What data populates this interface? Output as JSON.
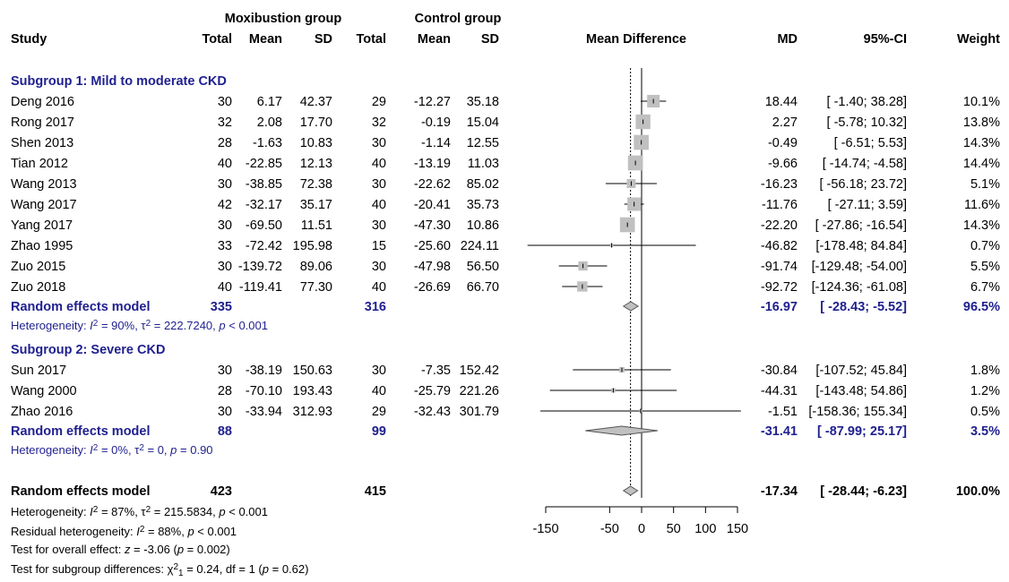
{
  "chart_data": {
    "type": "forest",
    "headers": {
      "group1": "Moxibustion group",
      "group2": "Control group",
      "study": "Study",
      "total1": "Total",
      "mean1": "Mean",
      "sd1": "SD",
      "total2": "Total",
      "mean2": "Mean",
      "sd2": "SD",
      "plot": "Mean Difference",
      "md": "MD",
      "ci": "95%-CI",
      "weight": "Weight"
    },
    "xlim": [
      -150,
      150
    ],
    "ticks": [
      "-150",
      "-50",
      "0",
      "50",
      "100",
      "150"
    ],
    "tick_values": [
      -150,
      -50,
      0,
      50,
      100,
      150
    ],
    "overall_md_line": -17.34,
    "subgroups": [
      {
        "title": "Subgroup 1: Mild to moderate CKD",
        "studies": [
          {
            "name": "Deng 2016",
            "n1": "30",
            "m1": "6.17",
            "s1": "42.37",
            "n2": "29",
            "m2": "-12.27",
            "s2": "35.18",
            "md_text": "18.44",
            "ci_text": "[ -1.40; 38.28]",
            "w_text": "10.1%",
            "md": 18.44,
            "lo": -1.4,
            "hi": 38.28,
            "w": 10.1
          },
          {
            "name": "Rong 2017",
            "n1": "32",
            "m1": "2.08",
            "s1": "17.70",
            "n2": "32",
            "m2": "-0.19",
            "s2": "15.04",
            "md_text": "2.27",
            "ci_text": "[ -5.78; 10.32]",
            "w_text": "13.8%",
            "md": 2.27,
            "lo": -5.78,
            "hi": 10.32,
            "w": 13.8
          },
          {
            "name": "Shen 2013",
            "n1": "28",
            "m1": "-1.63",
            "s1": "10.83",
            "n2": "30",
            "m2": "-1.14",
            "s2": "12.55",
            "md_text": "-0.49",
            "ci_text": "[ -6.51; 5.53]",
            "w_text": "14.3%",
            "md": -0.49,
            "lo": -6.51,
            "hi": 5.53,
            "w": 14.3
          },
          {
            "name": "Tian 2012",
            "n1": "40",
            "m1": "-22.85",
            "s1": "12.13",
            "n2": "40",
            "m2": "-13.19",
            "s2": "11.03",
            "md_text": "-9.66",
            "ci_text": "[ -14.74; -4.58]",
            "w_text": "14.4%",
            "md": -9.66,
            "lo": -14.74,
            "hi": -4.58,
            "w": 14.4
          },
          {
            "name": "Wang 2013",
            "n1": "30",
            "m1": "-38.85",
            "s1": "72.38",
            "n2": "30",
            "m2": "-22.62",
            "s2": "85.02",
            "md_text": "-16.23",
            "ci_text": "[ -56.18; 23.72]",
            "w_text": "5.1%",
            "md": -16.23,
            "lo": -56.18,
            "hi": 23.72,
            "w": 5.1
          },
          {
            "name": "Wang 2017",
            "n1": "42",
            "m1": "-32.17",
            "s1": "35.17",
            "n2": "40",
            "m2": "-20.41",
            "s2": "35.73",
            "md_text": "-11.76",
            "ci_text": "[ -27.11; 3.59]",
            "w_text": "11.6%",
            "md": -11.76,
            "lo": -27.11,
            "hi": 3.59,
            "w": 11.6
          },
          {
            "name": "Yang 2017",
            "n1": "30",
            "m1": "-69.50",
            "s1": "11.51",
            "n2": "30",
            "m2": "-47.30",
            "s2": "10.86",
            "md_text": "-22.20",
            "ci_text": "[ -27.86; -16.54]",
            "w_text": "14.3%",
            "md": -22.2,
            "lo": -27.86,
            "hi": -16.54,
            "w": 14.3
          },
          {
            "name": "Zhao 1995",
            "n1": "33",
            "m1": "-72.42",
            "s1": "195.98",
            "n2": "15",
            "m2": "-25.60",
            "s2": "224.11",
            "md_text": "-46.82",
            "ci_text": "[-178.48; 84.84]",
            "w_text": "0.7%",
            "md": -46.82,
            "lo": -178.48,
            "hi": 84.84,
            "w": 0.7
          },
          {
            "name": "Zuo 2015",
            "n1": "30",
            "m1": "-139.72",
            "s1": "89.06",
            "n2": "30",
            "m2": "-47.98",
            "s2": "56.50",
            "md_text": "-91.74",
            "ci_text": "[-129.48; -54.00]",
            "w_text": "5.5%",
            "md": -91.74,
            "lo": -129.48,
            "hi": -54.0,
            "w": 5.5
          },
          {
            "name": "Zuo 2018",
            "n1": "40",
            "m1": "-119.41",
            "s1": "77.30",
            "n2": "40",
            "m2": "-26.69",
            "s2": "66.70",
            "md_text": "-92.72",
            "ci_text": "[-124.36; -61.08]",
            "w_text": "6.7%",
            "md": -92.72,
            "lo": -124.36,
            "hi": -61.08,
            "w": 6.7
          }
        ],
        "pooled": {
          "label": "Random effects model",
          "n1": "335",
          "n2": "316",
          "md_text": "-16.97",
          "ci_text": "[ -28.43; -5.52]",
          "w_text": "96.5%",
          "md": -16.97,
          "lo": -28.43,
          "hi": -5.52
        },
        "het": {
          "prefix": "Heterogeneity: ",
          "i2sym": "I",
          "i2": " = 90%, ",
          "tau": "τ",
          "tau2": " = 222.7240, ",
          "p": "p",
          "pval": " < 0.001"
        }
      },
      {
        "title": "Subgroup 2: Severe CKD",
        "studies": [
          {
            "name": "Sun 2017",
            "n1": "30",
            "m1": "-38.19",
            "s1": "150.63",
            "n2": "30",
            "m2": "-7.35",
            "s2": "152.42",
            "md_text": "-30.84",
            "ci_text": "[-107.52; 45.84]",
            "w_text": "1.8%",
            "md": -30.84,
            "lo": -107.52,
            "hi": 45.84,
            "w": 1.8
          },
          {
            "name": "Wang 2000",
            "n1": "28",
            "m1": "-70.10",
            "s1": "193.43",
            "n2": "40",
            "m2": "-25.79",
            "s2": "221.26",
            "md_text": "-44.31",
            "ci_text": "[-143.48; 54.86]",
            "w_text": "1.2%",
            "md": -44.31,
            "lo": -143.48,
            "hi": 54.86,
            "w": 1.2
          },
          {
            "name": "Zhao 2016",
            "n1": "30",
            "m1": "-33.94",
            "s1": "312.93",
            "n2": "29",
            "m2": "-32.43",
            "s2": "301.79",
            "md_text": "-1.51",
            "ci_text": "[-158.36; 155.34]",
            "w_text": "0.5%",
            "md": -1.51,
            "lo": -158.36,
            "hi": 155.34,
            "w": 0.5
          }
        ],
        "pooled": {
          "label": "Random effects model",
          "n1": "88",
          "n2": "99",
          "md_text": "-31.41",
          "ci_text": "[ -87.99; 25.17]",
          "w_text": "3.5%",
          "md": -31.41,
          "lo": -87.99,
          "hi": 25.17
        },
        "het": {
          "prefix": "Heterogeneity: ",
          "i2sym": "I",
          "i2": " = 0%, ",
          "tau": "τ",
          "tau2": " = 0, ",
          "p": "p",
          "pval": " = 0.90"
        }
      }
    ],
    "overall": {
      "label": "Random effects model",
      "n1": "423",
      "n2": "415",
      "md_text": "-17.34",
      "ci_text": "[ -28.44; -6.23]",
      "w_text": "100.0%",
      "md": -17.34,
      "lo": -28.44,
      "hi": -6.23
    },
    "footnotes": {
      "het": {
        "prefix": "Heterogeneity: ",
        "i2sym": "I",
        "i2": " = 87%, ",
        "tau": "τ",
        "tau2": " = 215.5834, ",
        "p": "p",
        "pval": " < 0.001"
      },
      "resid": {
        "prefix": "Residual heterogeneity: ",
        "i2sym": "I",
        "i2": " = 88%, ",
        "p": "p",
        "pval": " < 0.001"
      },
      "overall_effect": {
        "prefix": "Test for overall effect: ",
        "z": "z",
        "zval": " = -3.06 (",
        "p": "p",
        "pval": " = 0.002)"
      },
      "subgroup_diff": {
        "prefix": "Test for subgroup differences: ",
        "chi": "χ",
        "chisub": "1",
        "chival": " = 0.24, df = 1 (",
        "p": "p",
        "pval": " = 0.62)"
      }
    },
    "colors": {
      "square": "#c0c0c0",
      "diamond": "#c0c0c0",
      "text_blue": "#1f1f8f",
      "line": "#000000"
    }
  }
}
